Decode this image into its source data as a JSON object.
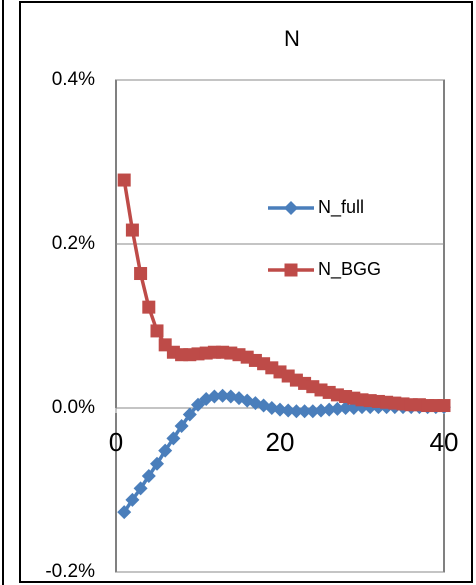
{
  "chart_data": {
    "type": "line",
    "title": "N",
    "x": [
      1,
      2,
      3,
      4,
      5,
      6,
      7,
      8,
      9,
      10,
      11,
      12,
      13,
      14,
      15,
      16,
      17,
      18,
      19,
      20,
      21,
      22,
      23,
      24,
      25,
      26,
      27,
      28,
      29,
      30,
      31,
      32,
      33,
      34,
      35,
      36,
      37,
      38,
      39,
      40
    ],
    "series": [
      {
        "name": "N_full",
        "color": "#4a7ebb",
        "marker": "diamond",
        "values": [
          -0.127,
          -0.112,
          -0.098,
          -0.083,
          -0.068,
          -0.052,
          -0.037,
          -0.022,
          -0.008,
          0.004,
          0.011,
          0.014,
          0.015,
          0.014,
          0.012,
          0.009,
          0.006,
          0.003,
          0.0,
          -0.002,
          -0.003,
          -0.004,
          -0.004,
          -0.004,
          -0.003,
          -0.002,
          -0.001,
          0.0,
          0.0,
          0.001,
          0.001,
          0.001,
          0.001,
          0.001,
          0.001,
          0.001,
          0.001,
          0.001,
          0.001,
          0.001
        ]
      },
      {
        "name": "N_BGG",
        "color": "#be4b48",
        "marker": "square",
        "values": [
          0.278,
          0.217,
          0.164,
          0.123,
          0.094,
          0.077,
          0.068,
          0.065,
          0.065,
          0.066,
          0.067,
          0.068,
          0.068,
          0.067,
          0.065,
          0.062,
          0.058,
          0.054,
          0.049,
          0.044,
          0.039,
          0.034,
          0.03,
          0.026,
          0.022,
          0.019,
          0.016,
          0.014,
          0.012,
          0.01,
          0.009,
          0.008,
          0.007,
          0.006,
          0.005,
          0.004,
          0.004,
          0.003,
          0.003,
          0.003
        ]
      }
    ],
    "xlim": [
      0,
      40
    ],
    "xticks": [
      0,
      20,
      40
    ],
    "ylim": [
      -0.2,
      0.4
    ],
    "yticks": [
      {
        "value": -0.2,
        "label": "-0.2%"
      },
      {
        "value": 0.0,
        "label": "0.0%"
      },
      {
        "value": 0.2,
        "label": "0.2%"
      },
      {
        "value": 0.4,
        "label": "0.4%"
      }
    ],
    "grid": true,
    "legend": "right"
  }
}
